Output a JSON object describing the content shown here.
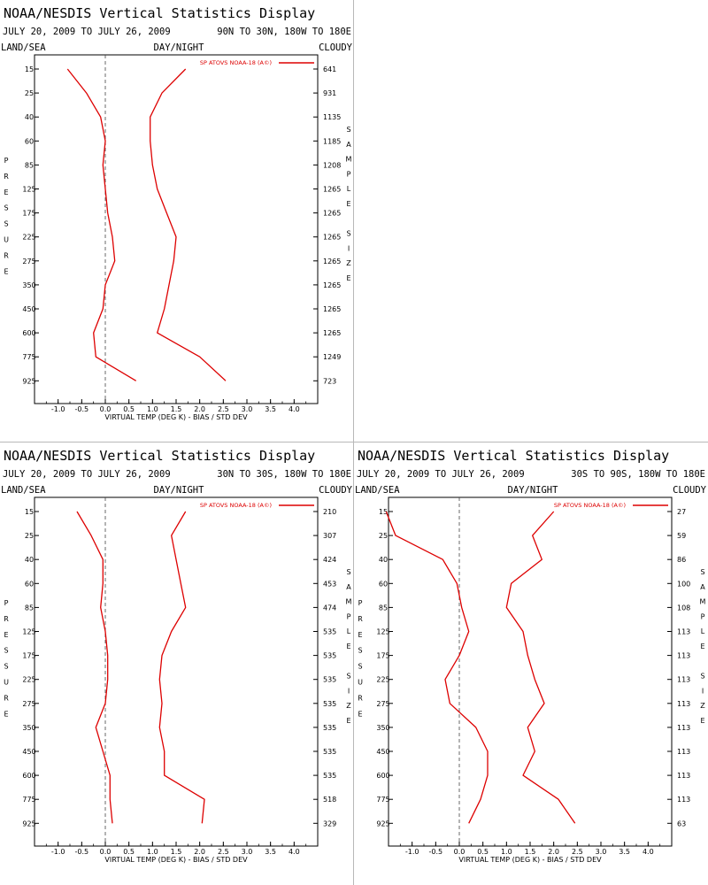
{
  "common": {
    "title": "NOAA/NESDIS Vertical Statistics Display",
    "dates": "JULY 20, 2009 TO JULY 26, 2009",
    "land_sea": "LAND/SEA",
    "day_night": "DAY/NIGHT",
    "cloudy": "CLOUDY",
    "legend": "SP ATOVS NOAA-18 (A©)",
    "left_vertical_label": [
      "P",
      "R",
      "E",
      "S",
      "S",
      "U",
      "R",
      "E"
    ],
    "right_vertical_label": [
      "S",
      "A",
      "M",
      "P",
      "L",
      "E",
      "",
      "S",
      "I",
      "Z",
      "E"
    ],
    "line_color": "#dd0000",
    "pressure_levels": [
      "15",
      "25",
      "40",
      "60",
      "85",
      "125",
      "175",
      "225",
      "275",
      "350",
      "450",
      "600",
      "775",
      "925"
    ],
    "x_ticks": [
      "-1.0",
      "-0.5",
      "0.0",
      "0.5",
      "1.0",
      "1.5",
      "2.0",
      "2.5",
      "3.0",
      "3.5",
      "4.0"
    ],
    "xlabel": "VIRTUAL TEMP (DEG K) - BIAS / STD DEV"
  },
  "chart_data": [
    {
      "type": "line",
      "region": "90N TO 30N, 180W TO 180E",
      "xlim": [
        -1.5,
        4.5
      ],
      "y_levels": [
        "15",
        "25",
        "40",
        "60",
        "85",
        "125",
        "175",
        "225",
        "275",
        "350",
        "450",
        "600",
        "775",
        "925"
      ],
      "sample_size": [
        "641",
        "931",
        "1135",
        "1185",
        "1208",
        "1265",
        "1265",
        "1265",
        "1265",
        "1265",
        "1265",
        "1265",
        "1249",
        "723"
      ],
      "series": [
        {
          "name": "",
          "kind": "bias",
          "values": [
            -0.8,
            -0.4,
            -0.1,
            0.0,
            -0.05,
            0.0,
            0.05,
            0.15,
            0.2,
            0.0,
            -0.05,
            -0.25,
            -0.2,
            0.65
          ]
        },
        {
          "name": "",
          "kind": "std_dev",
          "values": [
            1.7,
            1.2,
            0.95,
            0.95,
            1.0,
            1.1,
            1.3,
            1.5,
            1.45,
            1.35,
            1.25,
            1.1,
            2.0,
            2.55
          ]
        }
      ]
    },
    {
      "type": "line",
      "region": "30N TO 30S, 180W TO 180E",
      "xlim": [
        -1.5,
        4.5
      ],
      "y_levels": [
        "15",
        "25",
        "40",
        "60",
        "85",
        "125",
        "175",
        "225",
        "275",
        "350",
        "450",
        "600",
        "775",
        "925"
      ],
      "sample_size": [
        "210",
        "307",
        "424",
        "453",
        "474",
        "535",
        "535",
        "535",
        "535",
        "535",
        "535",
        "535",
        "518",
        "329"
      ],
      "series": [
        {
          "name": "",
          "kind": "bias",
          "values": [
            -0.6,
            -0.3,
            -0.05,
            -0.05,
            -0.1,
            0.0,
            0.05,
            0.05,
            0.0,
            -0.2,
            -0.05,
            0.1,
            0.1,
            0.15
          ]
        },
        {
          "name": "",
          "kind": "std_dev",
          "values": [
            1.7,
            1.4,
            1.5,
            1.6,
            1.7,
            1.4,
            1.2,
            1.15,
            1.2,
            1.15,
            1.25,
            1.25,
            2.1,
            2.05
          ]
        }
      ]
    },
    {
      "type": "line",
      "region": "30S TO 90S, 180W TO 180E",
      "xlim": [
        -1.5,
        4.5
      ],
      "y_levels": [
        "15",
        "25",
        "40",
        "60",
        "85",
        "125",
        "175",
        "225",
        "275",
        "350",
        "450",
        "600",
        "775",
        "925"
      ],
      "sample_size": [
        "27",
        "59",
        "86",
        "100",
        "108",
        "113",
        "113",
        "113",
        "113",
        "113",
        "113",
        "113",
        "113",
        "63"
      ],
      "series": [
        {
          "name": "",
          "kind": "bias",
          "values": [
            -1.55,
            -1.35,
            -0.35,
            -0.05,
            0.05,
            0.2,
            0.0,
            -0.3,
            -0.2,
            0.35,
            0.6,
            0.6,
            0.45,
            0.2
          ]
        },
        {
          "name": "",
          "kind": "std_dev",
          "values": [
            2.0,
            1.55,
            1.75,
            1.1,
            1.0,
            1.35,
            1.45,
            1.6,
            1.8,
            1.45,
            1.6,
            1.35,
            2.1,
            2.45
          ]
        }
      ]
    }
  ]
}
